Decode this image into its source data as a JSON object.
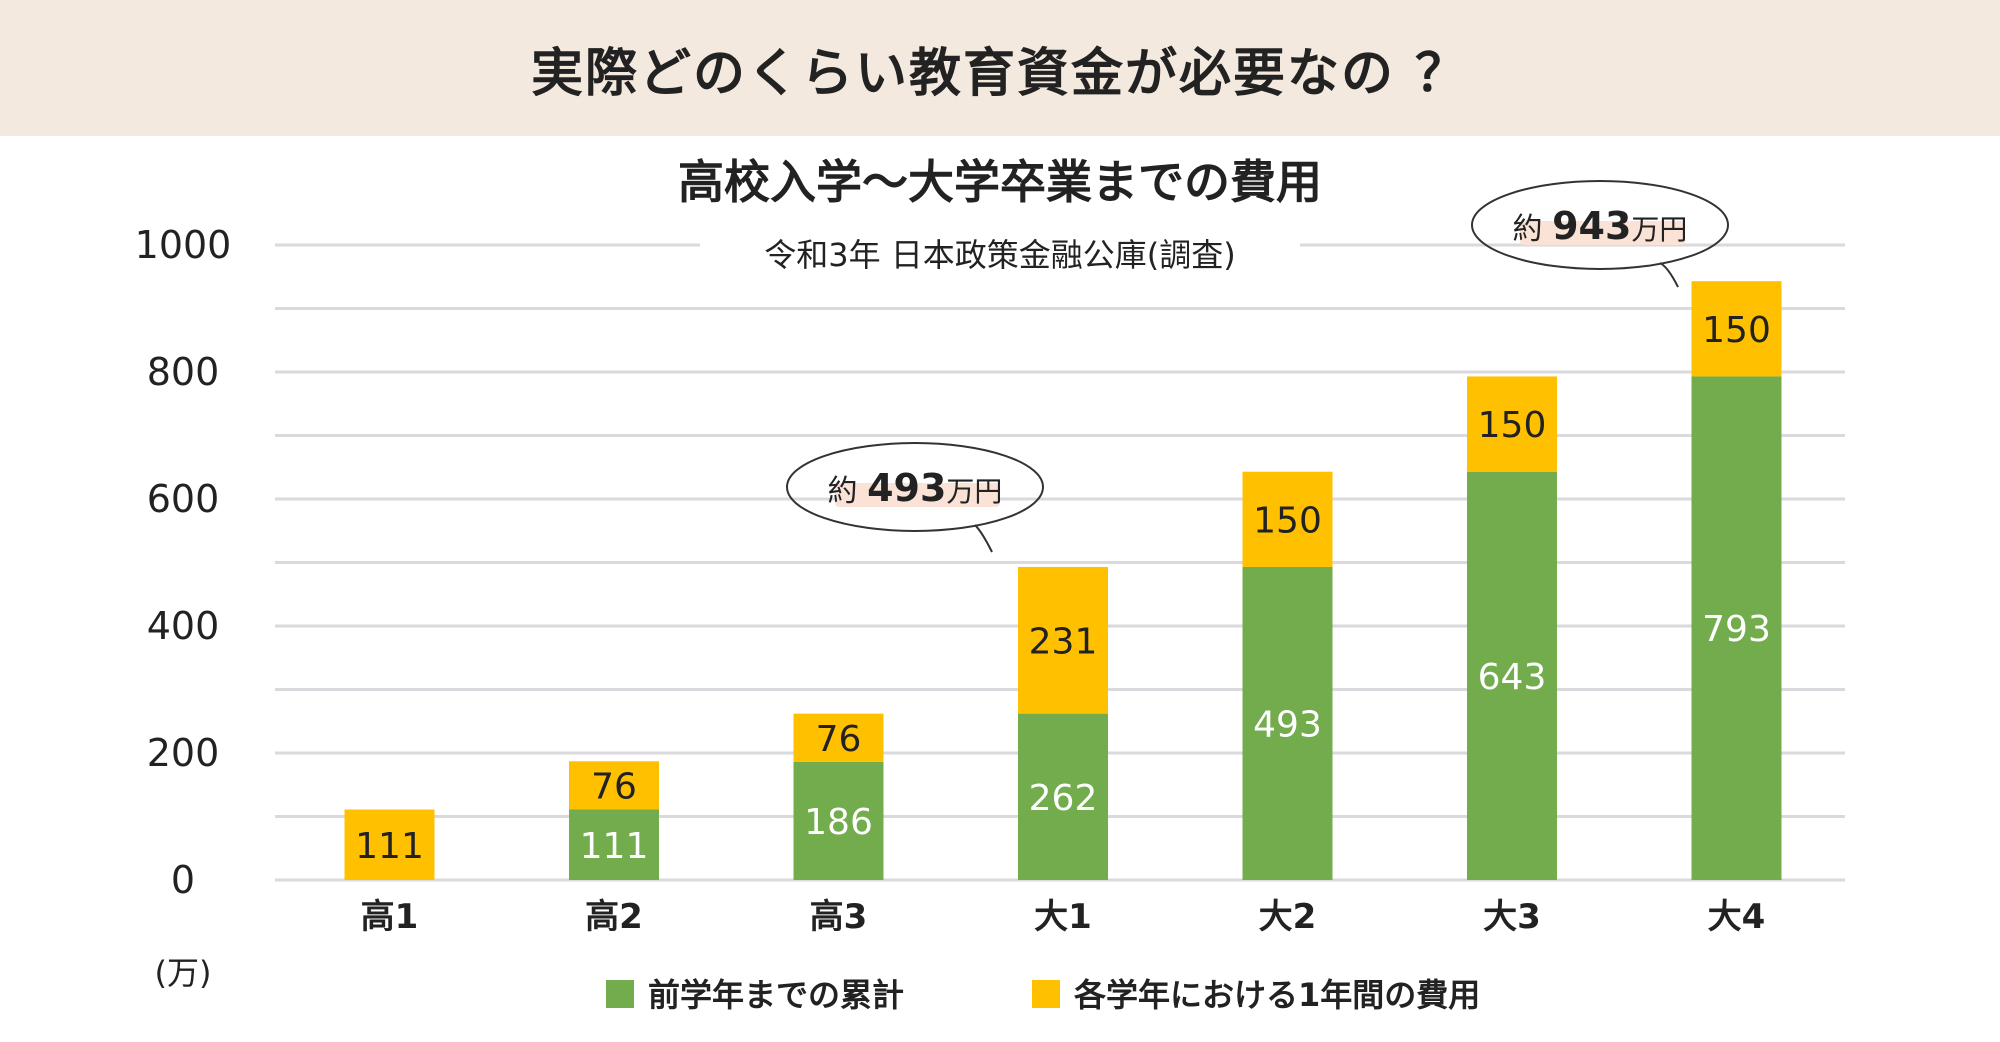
{
  "header": {
    "title": "実際どのくらい教育資金が必要なの ？"
  },
  "colors": {
    "cumulative": "#72ac4d",
    "annual": "#ffc000",
    "header_bg": "#f3e9df",
    "grid": "#d9d9de"
  },
  "chart_data": {
    "type": "bar",
    "stacked": true,
    "title": "高校入学〜大学卒業までの費用",
    "subtitle": "令和3年  日本政策金融公庫(調査)",
    "unit_label": "(万)",
    "categories": [
      "高1",
      "高2",
      "高3",
      "大1",
      "大2",
      "大3",
      "大4"
    ],
    "series": [
      {
        "name": "前学年までの累計",
        "values": [
          0,
          111,
          186,
          262,
          493,
          643,
          793
        ]
      },
      {
        "name": "各学年における1年間の費用",
        "values": [
          111,
          76,
          76,
          231,
          150,
          150,
          150
        ]
      }
    ],
    "data_labels": {
      "cumulative": [
        "",
        "111",
        "186",
        "262",
        "493",
        "643",
        "793"
      ],
      "annual": [
        "111",
        "76",
        "76",
        "231",
        "150",
        "150",
        "150"
      ]
    },
    "ylim": [
      0,
      1000
    ],
    "yticks": [
      "0",
      "200",
      "400",
      "600",
      "800",
      "1000"
    ],
    "grid": true,
    "legend_position": "bottom",
    "callouts": [
      {
        "prefix": "約",
        "value": "493",
        "suffix": "万円",
        "category": "大1"
      },
      {
        "prefix": "約",
        "value": "943",
        "suffix": "万円",
        "category": "大4"
      }
    ]
  }
}
